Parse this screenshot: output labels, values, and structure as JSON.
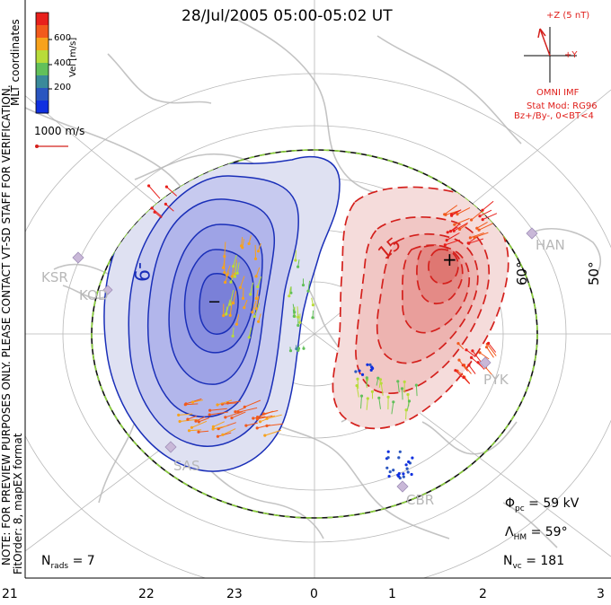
{
  "title": "28/Jul/2005 05:00-05:02 UT",
  "colorbar": {
    "label": "Vel [m/s]",
    "ticks": [
      "600",
      "400",
      "200"
    ],
    "colors": [
      "#e8201c",
      "#f25a1c",
      "#f7a21c",
      "#b8dc3a",
      "#62c05a",
      "#3a8a9a",
      "#2a56c0",
      "#1030e0"
    ]
  },
  "coordinates_label": "MLT coordinates",
  "scale_label": "1000 m/s",
  "side_note": "NOTE: FOR PREVIEW PURPOSES ONLY. PLEASE CONTACT VT-SD STAFF FOR VERIFICATION.",
  "fit_order": "FitOrder: 8, mapEX format",
  "imf": {
    "z_label": "+Z (5 nT)",
    "y_label": "+Y",
    "source": "OMNI IMF",
    "stat_mod": "Stat Mod: RG96",
    "condition": "Bz+/By-, 0<BT<4"
  },
  "stats": {
    "phi_label": "Φ",
    "phi_sub": "pc",
    "phi_value": "= 59 kV",
    "lambda_label": "Λ",
    "lambda_sub": "HM",
    "lambda_value": "= 59°",
    "nvc_label": "N",
    "nvc_sub": "vc",
    "nvc_value": "= 181",
    "nrads_label": "N",
    "nrads_sub": "rads",
    "nrads_value": "= 7"
  },
  "mlt_labels": [
    "21",
    "22",
    "23",
    "0",
    "1",
    "2",
    "3"
  ],
  "lat_labels": [
    "60°",
    "50°"
  ],
  "contour_labels": {
    "neg": "-9",
    "pos": "15",
    "min_marker": "−",
    "max_marker": "+"
  },
  "radars": [
    "KSR",
    "KOD",
    "SAS",
    "CBR",
    "PYK",
    "HAN"
  ],
  "colors": {
    "negative": "#1a2fb8",
    "positive": "#d4201c",
    "boundary": "#8ad03a",
    "geography": "#c4c4c4"
  }
}
